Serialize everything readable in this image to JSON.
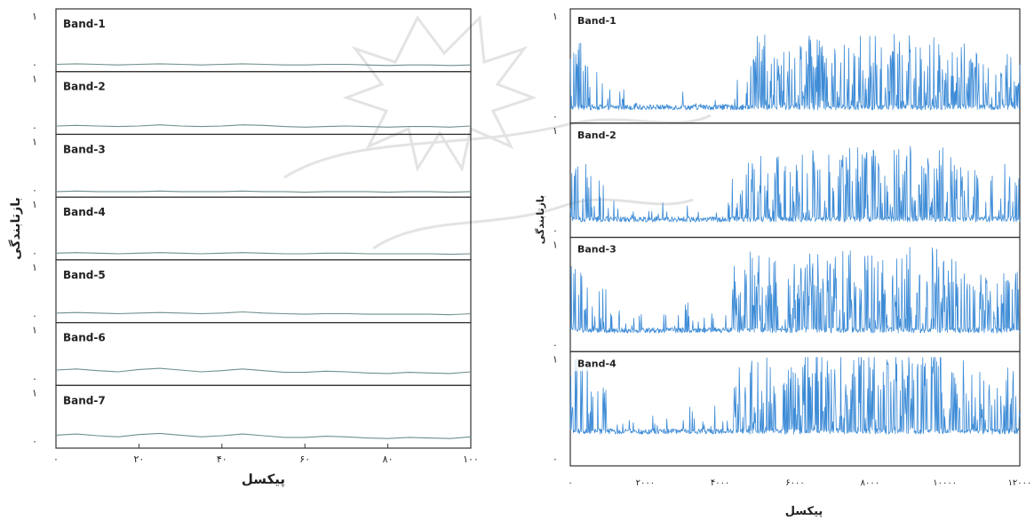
{
  "colors": {
    "left_line": "#6f8f8f",
    "right_line": "#3d8bd6",
    "frame": "#333333",
    "text": "#222222"
  },
  "chart_data": [
    {
      "type": "line",
      "panels": [
        "Band-1",
        "Band-2",
        "Band-3",
        "Band-4",
        "Band-5",
        "Band-6",
        "Band-7"
      ],
      "xlabel": "پیکسل",
      "ylabel": "بازتابندگی",
      "xlim": [
        0,
        100
      ],
      "x_ticks": [
        0,
        20,
        40,
        60,
        80,
        100
      ],
      "x_tick_labels": [
        "۰",
        "۲۰",
        "۴۰",
        "۶۰",
        "۸۰",
        "۱۰۰"
      ],
      "ylim": [
        0,
        1
      ],
      "y_tick_labels": [
        "۱",
        "۰"
      ],
      "series": [
        {
          "values": [
            0.08,
            0.09,
            0.08,
            0.07,
            0.08,
            0.09,
            0.08,
            0.07,
            0.08,
            0.09,
            0.08,
            0.07,
            0.07,
            0.08,
            0.08,
            0.07,
            0.06,
            0.07,
            0.07,
            0.06,
            0.07
          ]
        },
        {
          "values": [
            0.1,
            0.11,
            0.1,
            0.09,
            0.1,
            0.12,
            0.1,
            0.09,
            0.1,
            0.12,
            0.11,
            0.09,
            0.08,
            0.09,
            0.1,
            0.09,
            0.08,
            0.09,
            0.09,
            0.08,
            0.1
          ]
        },
        {
          "values": [
            0.05,
            0.06,
            0.05,
            0.05,
            0.05,
            0.06,
            0.05,
            0.05,
            0.05,
            0.06,
            0.05,
            0.05,
            0.04,
            0.05,
            0.05,
            0.05,
            0.04,
            0.05,
            0.05,
            0.04,
            0.05
          ]
        },
        {
          "values": [
            0.07,
            0.08,
            0.07,
            0.06,
            0.07,
            0.08,
            0.07,
            0.06,
            0.07,
            0.08,
            0.07,
            0.06,
            0.06,
            0.07,
            0.07,
            0.06,
            0.06,
            0.06,
            0.06,
            0.05,
            0.06
          ]
        },
        {
          "values": [
            0.12,
            0.13,
            0.12,
            0.11,
            0.12,
            0.13,
            0.12,
            0.11,
            0.12,
            0.14,
            0.12,
            0.11,
            0.1,
            0.11,
            0.11,
            0.1,
            0.1,
            0.1,
            0.1,
            0.09,
            0.11
          ]
        },
        {
          "values": [
            0.22,
            0.24,
            0.21,
            0.19,
            0.23,
            0.25,
            0.22,
            0.19,
            0.21,
            0.24,
            0.21,
            0.18,
            0.18,
            0.2,
            0.19,
            0.17,
            0.16,
            0.18,
            0.17,
            0.16,
            0.19
          ]
        },
        {
          "values": [
            0.18,
            0.2,
            0.17,
            0.15,
            0.19,
            0.21,
            0.18,
            0.15,
            0.17,
            0.2,
            0.17,
            0.14,
            0.14,
            0.16,
            0.15,
            0.13,
            0.12,
            0.14,
            0.13,
            0.12,
            0.15
          ]
        }
      ]
    },
    {
      "type": "line",
      "panels": [
        "Band-1",
        "Band-2",
        "Band-3",
        "Band-4"
      ],
      "xlabel": "پیکسل",
      "ylabel": "بازتابندگی",
      "xlim": [
        0,
        12000
      ],
      "x_ticks": [
        0,
        2000,
        4000,
        6000,
        8000,
        10000,
        12000
      ],
      "x_tick_labels": [
        "۰",
        "۲۰۰۰",
        "۴۰۰۰",
        "۶۰۰۰",
        "۸۰۰۰",
        "۱۰۰۰۰",
        "۱۲۰۰۰"
      ],
      "ylim": [
        0,
        1
      ],
      "y_tick_labels": [
        "۱",
        "۰"
      ],
      "series": [
        {
          "baseline": 0.13,
          "activity": [
            0.7,
            0.4,
            0.2,
            0.1,
            0.1,
            0.2,
            0.2,
            0.1,
            0.1,
            0.7,
            0.8,
            0.6,
            0.7,
            0.8,
            0.7,
            0.8,
            0.8,
            0.7,
            0.8,
            0.7,
            0.8,
            0.7,
            0.6,
            0.5,
            0.6
          ]
        },
        {
          "baseline": 0.15,
          "activity": [
            0.7,
            0.5,
            0.2,
            0.1,
            0.1,
            0.2,
            0.2,
            0.1,
            0.2,
            0.7,
            0.8,
            0.7,
            0.7,
            0.8,
            0.7,
            0.8,
            0.8,
            0.7,
            0.8,
            0.7,
            0.8,
            0.7,
            0.6,
            0.5,
            0.6
          ]
        },
        {
          "baseline": 0.18,
          "activity": [
            0.8,
            0.5,
            0.3,
            0.2,
            0.1,
            0.2,
            0.3,
            0.2,
            0.2,
            0.8,
            0.9,
            0.8,
            0.8,
            0.9,
            0.8,
            0.9,
            0.9,
            0.8,
            0.9,
            0.8,
            0.9,
            0.8,
            0.7,
            0.6,
            0.7
          ]
        },
        {
          "baseline": 0.3,
          "activity": [
            0.8,
            0.5,
            0.3,
            0.2,
            0.2,
            0.2,
            0.3,
            0.2,
            0.3,
            0.8,
            0.9,
            0.8,
            0.8,
            0.9,
            0.8,
            0.9,
            0.9,
            0.8,
            0.9,
            0.8,
            0.9,
            0.8,
            0.7,
            0.6,
            0.7
          ]
        }
      ]
    }
  ]
}
